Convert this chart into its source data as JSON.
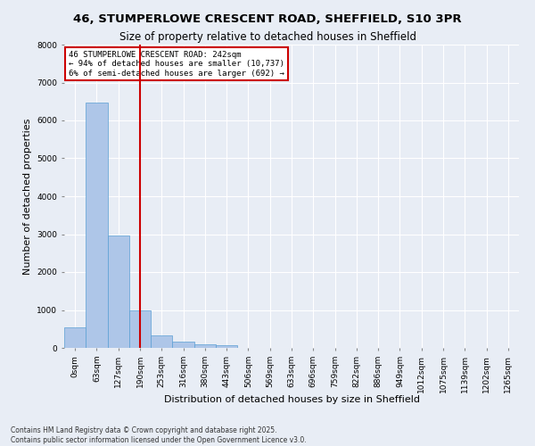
{
  "title_line1": "46, STUMPERLOWE CRESCENT ROAD, SHEFFIELD, S10 3PR",
  "title_line2": "Size of property relative to detached houses in Sheffield",
  "xlabel": "Distribution of detached houses by size in Sheffield",
  "ylabel": "Number of detached properties",
  "bar_color": "#aec6e8",
  "bar_edge_color": "#5a9fd4",
  "background_color": "#e8edf5",
  "grid_color": "#ffffff",
  "annotation_box_color": "#cc0000",
  "vline_color": "#cc0000",
  "vline_x": 3.5,
  "annotation_text": "46 STUMPERLOWE CRESCENT ROAD: 242sqm\n← 94% of detached houses are smaller (10,737)\n6% of semi-detached houses are larger (692) →",
  "categories": [
    "0sqm",
    "63sqm",
    "127sqm",
    "190sqm",
    "253sqm",
    "316sqm",
    "380sqm",
    "443sqm",
    "506sqm",
    "569sqm",
    "633sqm",
    "696sqm",
    "759sqm",
    "822sqm",
    "886sqm",
    "949sqm",
    "1012sqm",
    "1075sqm",
    "1139sqm",
    "1202sqm",
    "1265sqm"
  ],
  "values": [
    540,
    6480,
    2960,
    980,
    340,
    160,
    100,
    60,
    0,
    0,
    0,
    0,
    0,
    0,
    0,
    0,
    0,
    0,
    0,
    0,
    0
  ],
  "ylim": [
    0,
    8000
  ],
  "yticks": [
    0,
    1000,
    2000,
    3000,
    4000,
    5000,
    6000,
    7000,
    8000
  ],
  "footer_line1": "Contains HM Land Registry data © Crown copyright and database right 2025.",
  "footer_line2": "Contains public sector information licensed under the Open Government Licence v3.0.",
  "title_fontsize": 9.5,
  "subtitle_fontsize": 8.5,
  "axis_label_fontsize": 8,
  "tick_fontsize": 6.5,
  "annotation_fontsize": 6.5,
  "footer_fontsize": 5.5
}
